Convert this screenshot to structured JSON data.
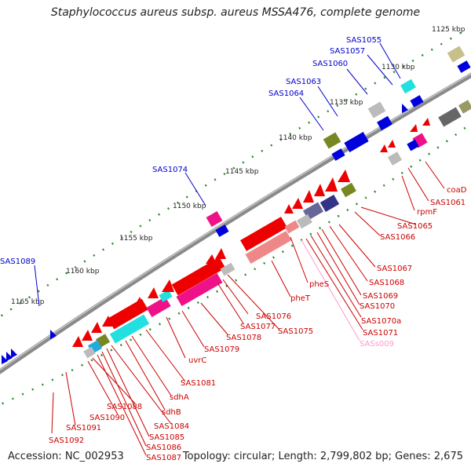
{
  "title": "Staphylococcus aureus subsp. aureus MSSA476, complete genome",
  "footer": {
    "accession": "Accession: NC_002953",
    "topology": "Topology: circular; Length: 2,799,802 bp; Genes: 2,675"
  },
  "scale_labels": [
    "1125 kbp",
    "1130 kbp",
    "1135 kbp",
    "1140 kbp",
    "1145 kbp",
    "1150 kbp",
    "1155 kbp",
    "1160 kbp",
    "1165 kbp"
  ],
  "outer_gene_labels": [
    "SAS1055",
    "SAS1057",
    "SAS1060",
    "SAS1063",
    "SAS1064",
    "SAS1074",
    "SAS1089"
  ],
  "inner_gene_labels": [
    "coaD",
    "SAS1061",
    "rpmF",
    "SAS1065",
    "SAS1066",
    "SAS1067",
    "SAS1068",
    "SAS1069",
    "SAS1070",
    "SAS1070a",
    "SAS1071",
    "SASs009",
    "pheS",
    "pheT",
    "SAS1075",
    "SAS1076",
    "SAS1077",
    "SAS1078",
    "SAS1079",
    "uvrC",
    "SAS1081",
    "sdhA",
    "sdhB",
    "SAS1084",
    "SAS1085",
    "SAS1086",
    "SAS1087",
    "SAS1088",
    "SAS1090",
    "SAS1091",
    "SAS1092"
  ],
  "colors": {
    "outer_label": "#0000cc",
    "inner_label": "#cc0000",
    "rna_label": "#ff99cc",
    "backbone": "#888888",
    "tick": "#228822"
  }
}
